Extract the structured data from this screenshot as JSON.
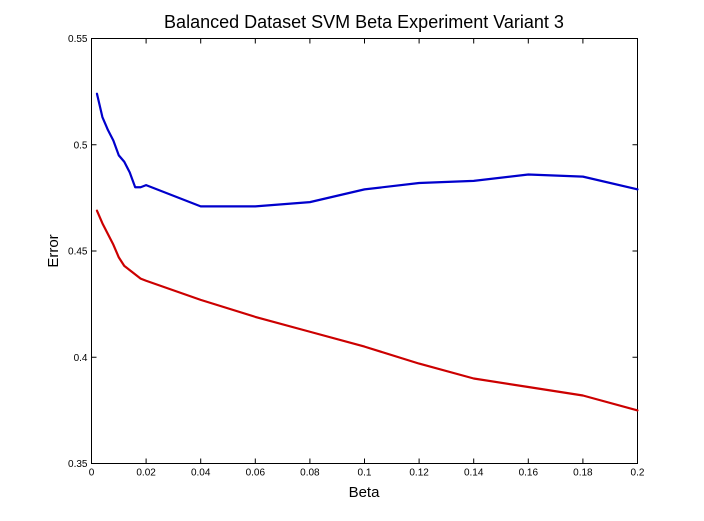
{
  "chart_data": {
    "type": "line",
    "title": "Balanced Dataset SVM Beta Experiment Variant 3",
    "xlabel": "Beta",
    "ylabel": "Error",
    "xlim": [
      0,
      0.2
    ],
    "ylim": [
      0.35,
      0.55
    ],
    "x_ticks": [
      0,
      0.02,
      0.04,
      0.06,
      0.08,
      0.1,
      0.12,
      0.14,
      0.16,
      0.18,
      0.2
    ],
    "x_tick_labels": [
      "0",
      "0.02",
      "0.04",
      "0.06",
      "0.08",
      "0.1",
      "0.12",
      "0.14",
      "0.16",
      "0.18",
      "0.2"
    ],
    "y_ticks": [
      0.35,
      0.4,
      0.45,
      0.5,
      0.55
    ],
    "y_tick_labels": [
      "0.35",
      "0.4",
      "0.45",
      "0.5",
      "0.55"
    ],
    "grid": false,
    "legend": "none",
    "series": [
      {
        "color": "#0000cc",
        "x": [
          0.002,
          0.004,
          0.006,
          0.008,
          0.01,
          0.012,
          0.014,
          0.016,
          0.018,
          0.02,
          0.04,
          0.06,
          0.08,
          0.1,
          0.12,
          0.14,
          0.16,
          0.18,
          0.2
        ],
        "y": [
          0.524,
          0.513,
          0.507,
          0.502,
          0.495,
          0.492,
          0.487,
          0.48,
          0.48,
          0.481,
          0.471,
          0.471,
          0.473,
          0.479,
          0.482,
          0.483,
          0.486,
          0.485,
          0.479
        ]
      },
      {
        "color": "#cc0000",
        "x": [
          0.002,
          0.004,
          0.006,
          0.008,
          0.01,
          0.012,
          0.014,
          0.016,
          0.018,
          0.02,
          0.04,
          0.06,
          0.08,
          0.1,
          0.12,
          0.14,
          0.16,
          0.18,
          0.2
        ],
        "y": [
          0.469,
          0.463,
          0.458,
          0.453,
          0.447,
          0.443,
          0.441,
          0.439,
          0.437,
          0.436,
          0.427,
          0.419,
          0.412,
          0.405,
          0.397,
          0.39,
          0.386,
          0.382,
          0.375
        ]
      }
    ]
  }
}
